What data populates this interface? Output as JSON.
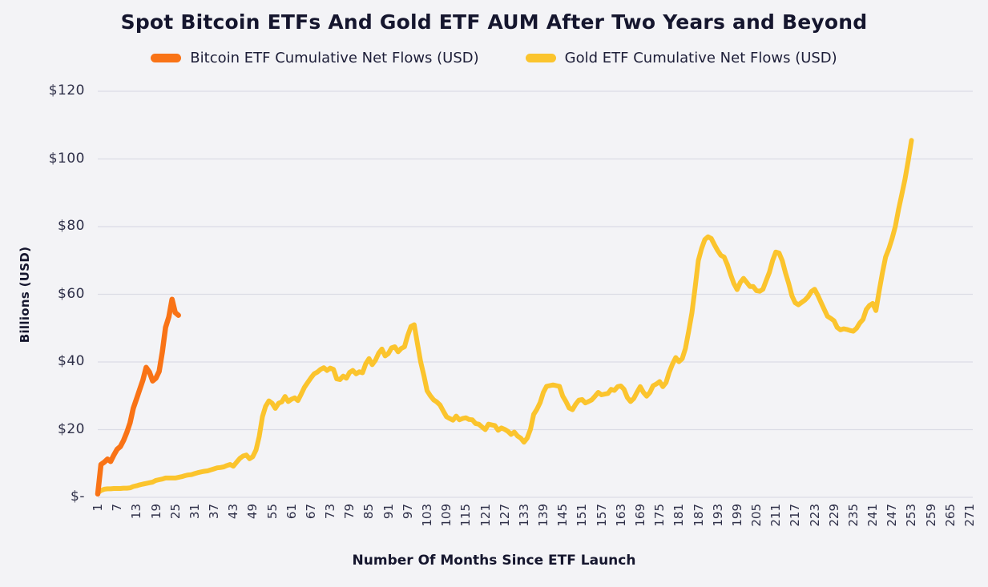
{
  "chart": {
    "title": "Spot Bitcoin ETFs And Gold ETF AUM After Two Years and Beyond",
    "x_axis_title": "Number Of Months Since ETF Launch",
    "y_axis_title": "Billions (USD)"
  },
  "legend": {
    "items": [
      {
        "label": "Bitcoin ETF Cumulative Net Flows (USD)",
        "color": "#f97316"
      },
      {
        "label": "Gold ETF Cumulative Net Flows (USD)",
        "color": "#fbc42d"
      }
    ]
  },
  "colors": {
    "background": "#f3f3f6",
    "gridline": "#dbdce5",
    "text": "#15162e",
    "bitcoin_line": "#f97316",
    "gold_line": "#fbc42d"
  },
  "chart_data": {
    "type": "line",
    "title": "Spot Bitcoin ETFs And Gold ETF AUM After Two Years and Beyond",
    "xlabel": "Number Of Months Since ETF Launch",
    "ylabel": "Billions (USD)",
    "xlim": [
      1,
      271
    ],
    "ylim": [
      0,
      120
    ],
    "grid": "horizontal",
    "legend_position": "top",
    "x_ticks": [
      1,
      7,
      13,
      19,
      25,
      31,
      37,
      43,
      49,
      55,
      61,
      67,
      73,
      79,
      85,
      91,
      97,
      103,
      109,
      115,
      121,
      127,
      133,
      139,
      145,
      151,
      157,
      163,
      169,
      175,
      181,
      187,
      193,
      199,
      205,
      211,
      217,
      223,
      229,
      235,
      241,
      247,
      253,
      259,
      265,
      271
    ],
    "y_ticks": [
      {
        "label": "$120",
        "value": 120
      },
      {
        "label": "$100",
        "value": 100
      },
      {
        "label": "$80",
        "value": 80
      },
      {
        "label": "$60",
        "value": 60
      },
      {
        "label": "$40",
        "value": 40
      },
      {
        "label": "$20",
        "value": 20
      },
      {
        "label": "$-",
        "value": 0
      }
    ],
    "x_unit": "months_since_launch",
    "series": [
      {
        "key": "bitcoin",
        "name": "Bitcoin ETF Cumulative Net Flows (USD)",
        "color": "#f97316",
        "start_month": 1,
        "values": [
          1.0,
          9.7,
          10.4,
          11.3,
          10.6,
          12.5,
          14.2,
          15.0,
          16.8,
          19.2,
          22.0,
          26.3,
          29.1,
          31.9,
          34.7,
          38.4,
          37.0,
          34.4,
          35.2,
          37.2,
          43.0,
          50.2,
          53.3,
          58.5,
          54.6,
          53.8
        ]
      },
      {
        "key": "gold",
        "name": "Gold ETF Cumulative Net Flows (USD)",
        "color": "#fbc42d",
        "start_month": 1,
        "values": [
          1.3,
          2.0,
          2.4,
          2.5,
          2.5,
          2.6,
          2.6,
          2.6,
          2.7,
          2.7,
          2.8,
          3.2,
          3.4,
          3.7,
          3.9,
          4.1,
          4.3,
          4.5,
          5.0,
          5.2,
          5.4,
          5.7,
          5.7,
          5.7,
          5.7,
          5.9,
          6.1,
          6.4,
          6.6,
          6.7,
          7.0,
          7.3,
          7.5,
          7.7,
          7.8,
          8.1,
          8.4,
          8.7,
          8.8,
          9.0,
          9.4,
          9.7,
          9.2,
          10.4,
          11.5,
          12.2,
          12.5,
          11.4,
          12.0,
          14.0,
          18.0,
          23.8,
          26.9,
          28.5,
          27.8,
          26.3,
          27.8,
          28.2,
          29.8,
          28.3,
          29.0,
          29.4,
          28.6,
          30.5,
          32.5,
          33.9,
          35.3,
          36.5,
          37.0,
          37.8,
          38.3,
          37.5,
          38.2,
          37.8,
          35.0,
          34.8,
          35.8,
          35.2,
          36.9,
          37.5,
          36.5,
          37.1,
          36.8,
          39.5,
          41.0,
          39.2,
          40.5,
          42.6,
          43.8,
          41.8,
          42.5,
          44.2,
          44.5,
          43.0,
          44.0,
          44.5,
          47.8,
          50.5,
          51.0,
          45.5,
          40.0,
          36.0,
          31.5,
          30.0,
          28.8,
          28.2,
          27.3,
          25.5,
          23.8,
          23.3,
          22.8,
          24.0,
          22.9,
          23.3,
          23.5,
          23.0,
          22.9,
          21.8,
          21.6,
          20.8,
          20.0,
          21.6,
          21.4,
          21.2,
          19.8,
          20.5,
          20.1,
          19.5,
          18.6,
          19.3,
          18.1,
          17.5,
          16.3,
          17.5,
          20.1,
          24.5,
          26.0,
          28.0,
          31.0,
          32.8,
          33.0,
          33.2,
          33.0,
          32.8,
          29.9,
          28.3,
          26.4,
          25.9,
          27.5,
          28.7,
          28.9,
          27.9,
          28.3,
          28.8,
          29.9,
          31.0,
          30.3,
          30.5,
          30.7,
          31.9,
          31.6,
          32.7,
          32.9,
          31.9,
          29.5,
          28.3,
          29.2,
          31.0,
          32.7,
          31.0,
          29.9,
          31.0,
          33.0,
          33.5,
          34.2,
          32.7,
          33.9,
          37.0,
          39.4,
          41.3,
          40.1,
          41.0,
          44.0,
          49.0,
          54.5,
          62.0,
          70.0,
          73.5,
          76.2,
          77.0,
          76.5,
          74.6,
          72.9,
          71.5,
          71.0,
          68.7,
          65.8,
          63.2,
          61.4,
          63.5,
          64.7,
          63.5,
          62.3,
          62.3,
          61.1,
          60.9,
          61.5,
          64.0,
          66.5,
          70.0,
          72.5,
          72.2,
          69.9,
          66.3,
          63.2,
          59.5,
          57.5,
          56.9,
          57.6,
          58.3,
          59.3,
          60.8,
          61.5,
          59.7,
          57.6,
          55.5,
          53.5,
          52.9,
          52.2,
          50.2,
          49.5,
          49.8,
          49.6,
          49.3,
          49.1,
          50.0,
          51.5,
          52.6,
          55.5,
          56.7,
          57.3,
          55.2,
          61.0,
          66.3,
          71.0,
          73.5,
          76.5,
          80.0,
          85.0,
          89.5,
          94.0,
          99.4,
          105.5
        ]
      }
    ]
  }
}
